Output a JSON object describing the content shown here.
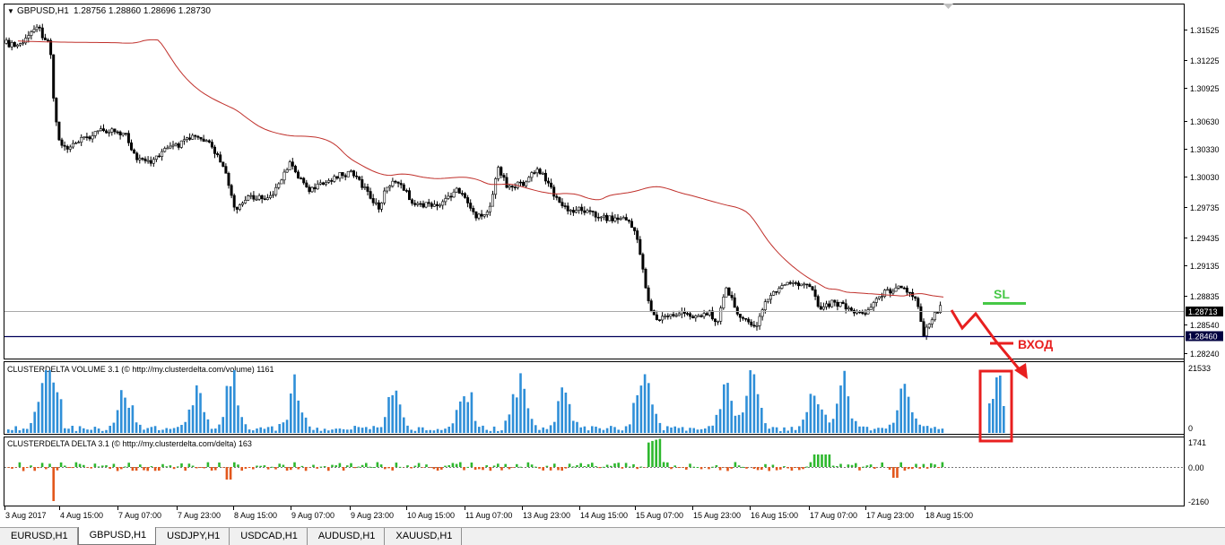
{
  "window": {
    "symbol_header": "GBPUSD,H1",
    "ohlc": "1.28756 1.28860 1.28696 1.28730"
  },
  "colors": {
    "ma_line": "#c0302b",
    "volume_bar": "#2f8fd8",
    "delta_pos": "#2eb82e",
    "delta_neg": "#e2571c",
    "annotation_red": "#e81f1f",
    "sl_green": "#46c846",
    "price_line": "#a9a9a9",
    "level_line": "#00005a",
    "axis_label_bg": "#000040"
  },
  "price_axis": {
    "ticks": [
      "1.31525",
      "1.31225",
      "1.30925",
      "1.30630",
      "1.30330",
      "1.30030",
      "1.29735",
      "1.29435",
      "1.29135",
      "1.28835",
      "1.28540",
      "1.28240"
    ],
    "current_price": "1.28713",
    "level_price": "1.28460"
  },
  "volume_panel": {
    "title": "CLUSTERDELTA VOLUME 3.1 (© http://my.clusterdelta.com/volume) 1161",
    "scale_top": "21533",
    "scale_zero": "0"
  },
  "delta_panel": {
    "title": "CLUSTERDELTA DELTA 3.1 (© http://my.clusterdelta.com/delta) 163",
    "scale_top": "1741",
    "scale_zero": "0.00",
    "scale_bottom": "-2160"
  },
  "time_axis": {
    "labels": [
      "3 Aug 2017",
      "4 Aug 15:00",
      "7 Aug 07:00",
      "7 Aug 23:00",
      "8 Aug 15:00",
      "9 Aug 07:00",
      "9 Aug 23:00",
      "10 Aug 15:00",
      "11 Aug 07:00",
      "13 Aug 23:00",
      "14 Aug 15:00",
      "15 Aug 07:00",
      "15 Aug 23:00",
      "16 Aug 15:00",
      "17 Aug 07:00",
      "17 Aug 23:00",
      "18 Aug 15:00"
    ]
  },
  "annotations": {
    "sl_label": "SL",
    "entry_label": "ВХОД"
  },
  "tabs": [
    {
      "label": "EURUSD,H1",
      "active": false
    },
    {
      "label": "GBPUSD,H1",
      "active": true
    },
    {
      "label": "USDJPY,H1",
      "active": false
    },
    {
      "label": "USDCAD,H1",
      "active": false
    },
    {
      "label": "AUDUSD,H1",
      "active": false
    },
    {
      "label": "XAUUSD,H1",
      "active": false
    }
  ]
}
